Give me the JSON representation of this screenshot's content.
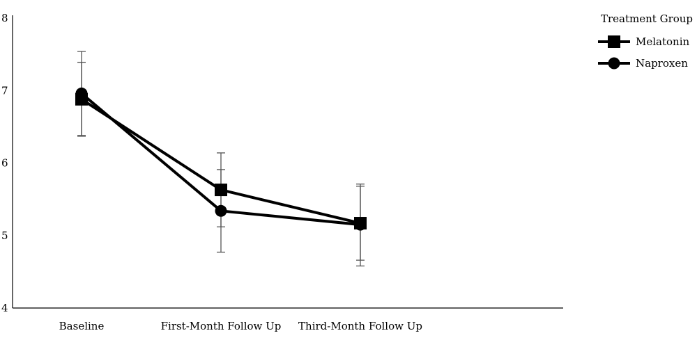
{
  "chart_data": {
    "type": "line",
    "title": "",
    "xlabel": "",
    "ylabel": "",
    "categories": [
      "Baseline",
      "First-Month Follow Up",
      "Third-Month Follow Up"
    ],
    "ylim": [
      4,
      8
    ],
    "yticks": [
      "4",
      "5",
      "6",
      "7",
      "8"
    ],
    "grid": false,
    "legend": {
      "title": "Treatment Group",
      "placement": "top-right"
    },
    "series": [
      {
        "name": "Melatonin",
        "marker": "square",
        "values": [
          6.88,
          5.63,
          5.17
        ],
        "error_low": [
          6.37,
          5.12,
          4.66
        ],
        "error_high": [
          7.39,
          6.14,
          5.68
        ]
      },
      {
        "name": "Naproxen",
        "marker": "circle",
        "values": [
          6.96,
          5.34,
          5.15
        ],
        "error_low": [
          6.38,
          4.77,
          4.58
        ],
        "error_high": [
          7.54,
          5.91,
          5.71
        ]
      }
    ],
    "colors": {
      "line": "#000000",
      "error_bar": "#555555",
      "axis": "#000000"
    }
  }
}
